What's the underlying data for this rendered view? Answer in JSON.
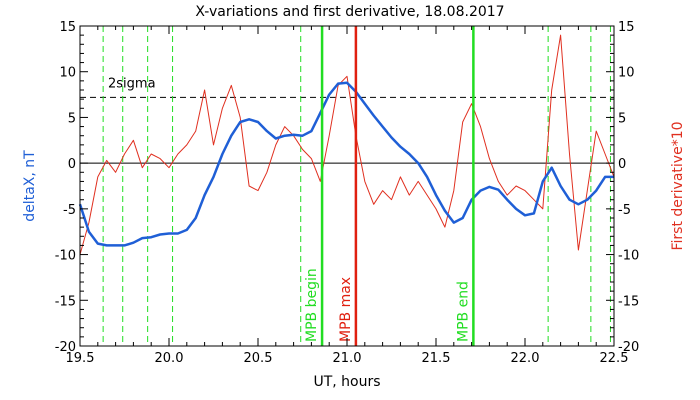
{
  "chart_data": {
    "type": "line",
    "title": "X-variations and first derivative, 18.08.2017",
    "xlabel": "UT, hours",
    "ylabel_left": "deltaX, nT",
    "ylabel_right": "First derivative*10",
    "xlim": [
      19.5,
      22.5
    ],
    "ylim": [
      -20,
      15
    ],
    "x_ticks": [
      19.5,
      20.0,
      20.5,
      21.0,
      21.5,
      22.0,
      22.5
    ],
    "x_tick_labels": [
      "19.5",
      "20.0",
      "20.5",
      "21.0",
      "21.5",
      "22.0",
      "22.5"
    ],
    "y_ticks": [
      -20,
      -15,
      -10,
      -5,
      0,
      5,
      10,
      15
    ],
    "y_tick_labels": [
      "-20",
      "-15",
      "-10",
      "-5",
      "0",
      "5",
      "10",
      "15"
    ],
    "colors": {
      "deltaX": "#1f5fd6",
      "derivative": "#e03020",
      "markers_green": "#22dd22",
      "marker_red": "#e02010"
    },
    "threshold": {
      "label": "2sigma",
      "value": 7.2
    },
    "vlines_dashed_green": [
      19.63,
      19.74,
      19.88,
      20.02,
      20.74,
      22.13,
      22.37,
      22.48
    ],
    "vlines_labeled": [
      {
        "x": 20.86,
        "label": "MPB begin",
        "color": "#22dd22"
      },
      {
        "x": 21.05,
        "label": "MPB max",
        "color": "#e02010"
      },
      {
        "x": 21.71,
        "label": "MPB end",
        "color": "#22dd22"
      }
    ],
    "series": [
      {
        "axis": "left",
        "x": [
          19.5,
          19.55,
          19.6,
          19.65,
          19.7,
          19.75,
          19.8,
          19.85,
          19.9,
          19.95,
          20.0,
          20.05,
          20.1,
          20.15,
          20.2,
          20.25,
          20.3,
          20.35,
          20.4,
          20.45,
          20.5,
          20.55,
          20.6,
          20.65,
          20.7,
          20.75,
          20.8,
          20.85,
          20.9,
          20.95,
          21.0,
          21.05,
          21.1,
          21.15,
          21.2,
          21.25,
          21.3,
          21.35,
          21.4,
          21.45,
          21.5,
          21.55,
          21.6,
          21.65,
          21.7,
          21.75,
          21.8,
          21.85,
          21.9,
          21.95,
          22.0,
          22.05,
          22.1,
          22.15,
          22.2,
          22.25,
          22.3,
          22.35,
          22.4,
          22.45,
          22.5
        ],
        "values": [
          -4.5,
          -7.5,
          -8.8,
          -9.0,
          -9.0,
          -9.0,
          -8.7,
          -8.2,
          -8.1,
          -7.8,
          -7.7,
          -7.7,
          -7.3,
          -6.0,
          -3.5,
          -1.5,
          1.0,
          3.0,
          4.5,
          4.8,
          4.5,
          3.5,
          2.7,
          3.0,
          3.1,
          3.0,
          3.5,
          5.5,
          7.5,
          8.7,
          8.8,
          7.8,
          6.5,
          5.2,
          4.0,
          2.8,
          1.8,
          1.0,
          0.0,
          -1.5,
          -3.5,
          -5.2,
          -6.5,
          -6.0,
          -4.0,
          -3.0,
          -2.6,
          -2.9,
          -4.0,
          -5.0,
          -5.7,
          -5.5,
          -2.0,
          -0.5,
          -2.5,
          -4.0,
          -4.5,
          -4.0,
          -3.0,
          -1.5,
          -1.5
        ]
      },
      {
        "axis": "right",
        "x": [
          19.5,
          19.55,
          19.6,
          19.65,
          19.7,
          19.75,
          19.8,
          19.85,
          19.9,
          19.95,
          20.0,
          20.05,
          20.1,
          20.15,
          20.2,
          20.25,
          20.3,
          20.35,
          20.4,
          20.45,
          20.5,
          20.55,
          20.6,
          20.65,
          20.7,
          20.75,
          20.8,
          20.85,
          20.9,
          20.95,
          21.0,
          21.05,
          21.1,
          21.15,
          21.2,
          21.25,
          21.3,
          21.35,
          21.4,
          21.45,
          21.5,
          21.55,
          21.6,
          21.65,
          21.7,
          21.75,
          21.8,
          21.85,
          21.9,
          21.95,
          22.0,
          22.05,
          22.1,
          22.15,
          22.2,
          22.25,
          22.3,
          22.35,
          22.4,
          22.45,
          22.5
        ],
        "values": [
          -10.0,
          -6.5,
          -1.5,
          0.3,
          -1.0,
          1.0,
          2.5,
          -0.5,
          1.0,
          0.5,
          -0.5,
          1.0,
          2.0,
          3.5,
          8.0,
          2.0,
          6.0,
          8.5,
          5.0,
          -2.5,
          -3.0,
          -1.0,
          2.0,
          4.0,
          3.0,
          1.5,
          0.5,
          -2.0,
          3.0,
          8.5,
          9.5,
          3.0,
          -2.0,
          -4.5,
          -3.0,
          -4.0,
          -1.5,
          -3.5,
          -2.0,
          -3.5,
          -5.0,
          -7.0,
          -3.0,
          4.5,
          6.5,
          4.0,
          0.5,
          -2.0,
          -3.5,
          -2.5,
          -3.0,
          -4.0,
          -5.0,
          8.0,
          14.0,
          1.0,
          -9.5,
          -3.0,
          3.5,
          1.0,
          -1.5
        ]
      }
    ]
  }
}
